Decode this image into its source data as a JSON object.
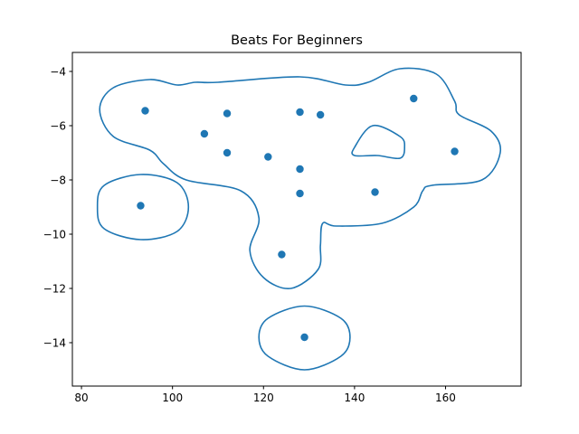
{
  "chart_data": {
    "type": "scatter",
    "title": "Beats For Beginners",
    "xlabel": "",
    "ylabel": "",
    "xlim": [
      78,
      176.6
    ],
    "ylim": [
      -15.6,
      -3.3
    ],
    "xticks": [
      80,
      100,
      120,
      140,
      160
    ],
    "yticks": [
      -14,
      -12,
      -10,
      -8,
      -6,
      -4
    ],
    "grid": false,
    "legend": "none",
    "color": "#1f77b4",
    "points": [
      {
        "x": 94,
        "y": -5.45
      },
      {
        "x": 112,
        "y": -5.55
      },
      {
        "x": 128,
        "y": -5.5
      },
      {
        "x": 132.5,
        "y": -5.6
      },
      {
        "x": 153,
        "y": -5.0
      },
      {
        "x": 107,
        "y": -6.3
      },
      {
        "x": 112,
        "y": -7.0
      },
      {
        "x": 121,
        "y": -7.15
      },
      {
        "x": 128,
        "y": -7.6
      },
      {
        "x": 162,
        "y": -6.95
      },
      {
        "x": 128,
        "y": -8.5
      },
      {
        "x": 144.5,
        "y": -8.45
      },
      {
        "x": 93,
        "y": -8.95
      },
      {
        "x": 124,
        "y": -10.75
      },
      {
        "x": 129,
        "y": -13.8
      }
    ],
    "contours": [
      {
        "name": "main-region",
        "points": [
          [
            110,
            -4.4
          ],
          [
            128,
            -4.2
          ],
          [
            138,
            -4.5
          ],
          [
            143,
            -4.4
          ],
          [
            150,
            -3.9
          ],
          [
            158,
            -4.1
          ],
          [
            162,
            -5.1
          ],
          [
            163,
            -5.6
          ],
          [
            170,
            -6.2
          ],
          [
            172,
            -7.0
          ],
          [
            168,
            -8.0
          ],
          [
            157,
            -8.2
          ],
          [
            155,
            -8.4
          ],
          [
            153,
            -9.0
          ],
          [
            146,
            -9.6
          ],
          [
            136,
            -9.7
          ],
          [
            133,
            -9.6
          ],
          [
            132.5,
            -10.4
          ],
          [
            132,
            -11.3
          ],
          [
            126,
            -12.0
          ],
          [
            120,
            -11.6
          ],
          [
            117,
            -10.6
          ],
          [
            119,
            -9.4
          ],
          [
            115,
            -8.4
          ],
          [
            103,
            -8.0
          ],
          [
            98,
            -7.4
          ],
          [
            95,
            -6.9
          ],
          [
            87,
            -6.4
          ],
          [
            84,
            -5.4
          ],
          [
            87,
            -4.6
          ],
          [
            95,
            -4.3
          ],
          [
            101,
            -4.5
          ],
          [
            105,
            -4.4
          ]
        ],
        "closed": true
      },
      {
        "name": "inner-hole",
        "points": [
          [
            140,
            -6.8
          ],
          [
            144,
            -6.0
          ],
          [
            150,
            -6.4
          ],
          [
            151,
            -6.8
          ],
          [
            150,
            -7.2
          ],
          [
            145,
            -7.1
          ],
          [
            140,
            -7.1
          ]
        ],
        "closed": true
      },
      {
        "name": "left-region",
        "points": [
          [
            83.5,
            -9.0
          ],
          [
            85,
            -8.2
          ],
          [
            93,
            -7.8
          ],
          [
            101,
            -8.1
          ],
          [
            103.5,
            -9.0
          ],
          [
            101,
            -9.9
          ],
          [
            93,
            -10.2
          ],
          [
            85,
            -9.8
          ]
        ],
        "closed": true
      },
      {
        "name": "bottom-region",
        "points": [
          [
            119,
            -13.8
          ],
          [
            121,
            -13.1
          ],
          [
            129,
            -12.65
          ],
          [
            137,
            -13.1
          ],
          [
            139,
            -13.8
          ],
          [
            137,
            -14.5
          ],
          [
            129,
            -15.0
          ],
          [
            121,
            -14.5
          ]
        ],
        "closed": true
      }
    ]
  }
}
